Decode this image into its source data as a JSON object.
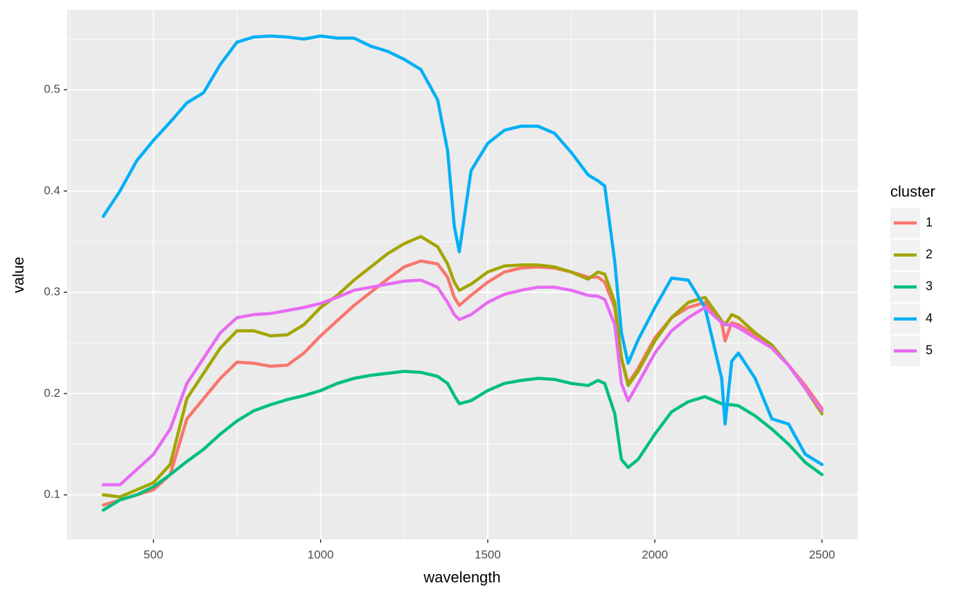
{
  "chart_data": {
    "type": "line",
    "x_label": "wavelength",
    "y_label": "value",
    "legend_title": "cluster",
    "xlim": [
      242,
      2607
    ],
    "ylim": [
      0.056,
      0.579
    ],
    "xticks": [
      500,
      1000,
      1500,
      2000,
      2500
    ],
    "yticks": [
      0.1,
      0.2,
      0.3,
      0.4,
      0.5
    ],
    "grid": true,
    "legend_position": "right",
    "x": [
      350,
      400,
      450,
      500,
      550,
      600,
      650,
      700,
      750,
      800,
      850,
      900,
      950,
      1000,
      1050,
      1100,
      1150,
      1200,
      1250,
      1300,
      1350,
      1380,
      1400,
      1415,
      1450,
      1500,
      1550,
      1600,
      1650,
      1700,
      1750,
      1800,
      1830,
      1850,
      1880,
      1900,
      1920,
      1950,
      2000,
      2050,
      2100,
      2150,
      2200,
      2210,
      2230,
      2250,
      2300,
      2350,
      2400,
      2450,
      2500
    ],
    "series": [
      {
        "name": "1",
        "color": "#F8766D",
        "values": [
          0.09,
          0.095,
          0.1,
          0.105,
          0.12,
          0.175,
          0.195,
          0.215,
          0.231,
          0.23,
          0.227,
          0.228,
          0.24,
          0.257,
          0.272,
          0.287,
          0.3,
          0.313,
          0.325,
          0.331,
          0.328,
          0.315,
          0.295,
          0.287,
          0.297,
          0.31,
          0.32,
          0.324,
          0.325,
          0.324,
          0.32,
          0.315,
          0.315,
          0.31,
          0.285,
          0.235,
          0.21,
          0.225,
          0.255,
          0.275,
          0.285,
          0.29,
          0.27,
          0.252,
          0.27,
          0.268,
          0.258,
          0.245,
          0.228,
          0.208,
          0.185
        ]
      },
      {
        "name": "2",
        "color": "#A3A500",
        "values": [
          0.1,
          0.098,
          0.105,
          0.112,
          0.13,
          0.195,
          0.22,
          0.245,
          0.262,
          0.262,
          0.257,
          0.258,
          0.268,
          0.285,
          0.297,
          0.312,
          0.325,
          0.338,
          0.348,
          0.355,
          0.345,
          0.328,
          0.31,
          0.302,
          0.308,
          0.32,
          0.326,
          0.327,
          0.327,
          0.325,
          0.32,
          0.313,
          0.32,
          0.318,
          0.29,
          0.235,
          0.208,
          0.222,
          0.252,
          0.275,
          0.29,
          0.295,
          0.272,
          0.268,
          0.278,
          0.275,
          0.26,
          0.248,
          0.228,
          0.205,
          0.18
        ]
      },
      {
        "name": "3",
        "color": "#00BF7D",
        "values": [
          0.085,
          0.095,
          0.1,
          0.108,
          0.12,
          0.133,
          0.145,
          0.16,
          0.173,
          0.183,
          0.189,
          0.194,
          0.198,
          0.203,
          0.21,
          0.215,
          0.218,
          0.22,
          0.222,
          0.221,
          0.217,
          0.21,
          0.198,
          0.19,
          0.193,
          0.203,
          0.21,
          0.213,
          0.215,
          0.214,
          0.21,
          0.208,
          0.213,
          0.21,
          0.18,
          0.135,
          0.127,
          0.135,
          0.16,
          0.182,
          0.192,
          0.197,
          0.19,
          0.189,
          0.189,
          0.188,
          0.178,
          0.165,
          0.15,
          0.132,
          0.12
        ]
      },
      {
        "name": "4",
        "color": "#00B0F6",
        "values": [
          0.375,
          0.4,
          0.43,
          0.45,
          0.468,
          0.487,
          0.497,
          0.525,
          0.547,
          0.552,
          0.553,
          0.552,
          0.55,
          0.553,
          0.551,
          0.551,
          0.543,
          0.538,
          0.53,
          0.52,
          0.49,
          0.44,
          0.365,
          0.34,
          0.42,
          0.447,
          0.46,
          0.464,
          0.464,
          0.457,
          0.438,
          0.416,
          0.41,
          0.405,
          0.33,
          0.26,
          0.23,
          0.253,
          0.285,
          0.314,
          0.312,
          0.285,
          0.215,
          0.17,
          0.232,
          0.24,
          0.215,
          0.175,
          0.17,
          0.14,
          0.13
        ]
      },
      {
        "name": "5",
        "color": "#E76BF3",
        "values": [
          0.11,
          0.11,
          0.125,
          0.14,
          0.165,
          0.21,
          0.235,
          0.26,
          0.275,
          0.278,
          0.279,
          0.282,
          0.285,
          0.289,
          0.295,
          0.302,
          0.305,
          0.308,
          0.311,
          0.312,
          0.305,
          0.29,
          0.278,
          0.273,
          0.278,
          0.29,
          0.298,
          0.302,
          0.305,
          0.305,
          0.302,
          0.297,
          0.296,
          0.293,
          0.268,
          0.21,
          0.193,
          0.21,
          0.24,
          0.262,
          0.275,
          0.285,
          0.27,
          0.268,
          0.268,
          0.265,
          0.255,
          0.245,
          0.228,
          0.205,
          0.183
        ]
      }
    ]
  }
}
